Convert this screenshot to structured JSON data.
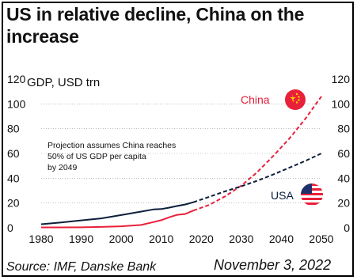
{
  "title": "US in relative decline, China on the increase",
  "footer": {
    "source": "Source: IMF, Danske Bank",
    "date": "November 3, 2022"
  },
  "colors": {
    "china": "#e8203a",
    "usa": "#0d1f3c",
    "grid": "#999999"
  },
  "chart_data": {
    "type": "line",
    "ylabel": "GDP, USD trn",
    "ylim": [
      0,
      120
    ],
    "xlim": [
      1980,
      2050
    ],
    "yticks": [
      0,
      20,
      40,
      60,
      80,
      100,
      120
    ],
    "xticks": [
      1980,
      1990,
      2000,
      2010,
      2020,
      2030,
      2040,
      2050
    ],
    "annotation": "Projection assumes China reaches 50% of US GDP per capita by 2049",
    "series": [
      {
        "name": "China",
        "color": "#e8203a",
        "icon": "china-flag-icon",
        "actual": {
          "x": [
            1980,
            1985,
            1990,
            1995,
            2000,
            2005,
            2008,
            2010,
            2012,
            2014,
            2016,
            2018
          ],
          "y": [
            0.3,
            0.3,
            0.4,
            0.7,
            1.2,
            2.3,
            4.6,
            6.1,
            8.5,
            10.5,
            11.2,
            13.9
          ]
        },
        "projection": {
          "x": [
            2018,
            2022,
            2026,
            2030,
            2034,
            2038,
            2042,
            2046,
            2050
          ],
          "y": [
            13.9,
            18.5,
            25.5,
            34,
            45,
            58,
            72,
            88,
            106
          ]
        }
      },
      {
        "name": "USA",
        "color": "#0d1f3c",
        "icon": "usa-flag-icon",
        "actual": {
          "x": [
            1980,
            1985,
            1990,
            1995,
            2000,
            2005,
            2008,
            2010,
            2012,
            2014,
            2016,
            2018
          ],
          "y": [
            2.9,
            4.3,
            6,
            7.6,
            10.3,
            13.1,
            14.8,
            15.1,
            16.3,
            17.6,
            18.8,
            20.6
          ]
        },
        "projection": {
          "x": [
            2018,
            2022,
            2026,
            2030,
            2034,
            2038,
            2042,
            2046,
            2050
          ],
          "y": [
            20.6,
            25,
            29.5,
            33.5,
            38,
            43,
            48.5,
            54,
            60
          ]
        }
      }
    ]
  }
}
